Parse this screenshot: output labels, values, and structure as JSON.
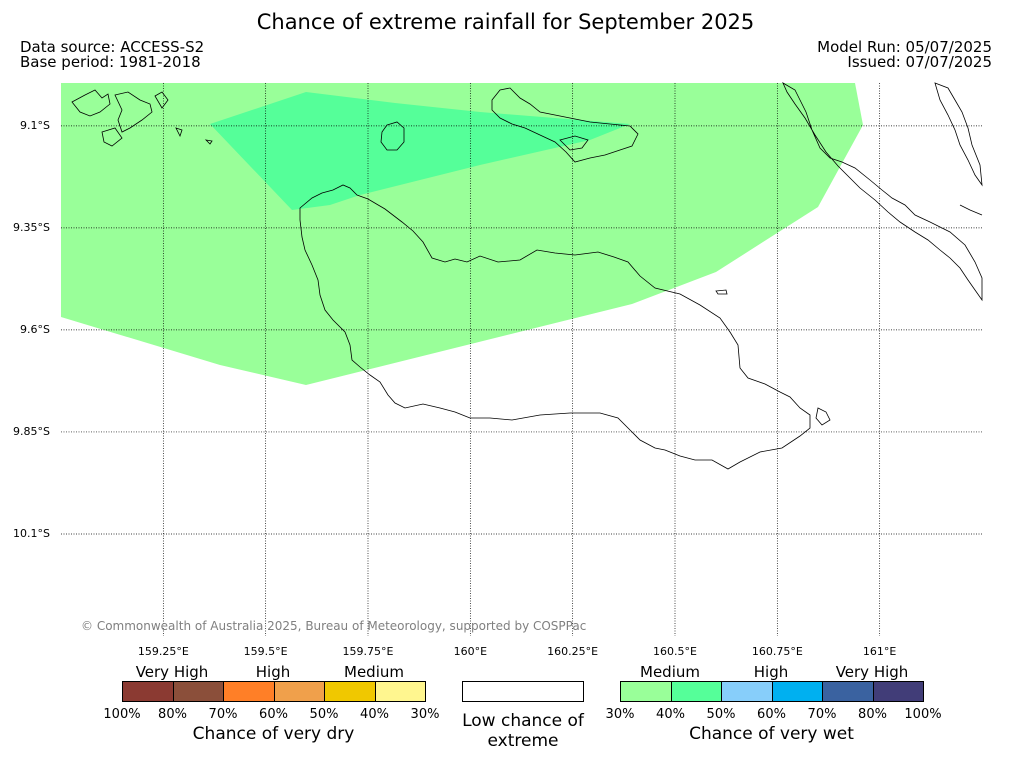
{
  "title": "Chance of extreme rainfall for September 2025",
  "source": {
    "data_source": "Data source: ACCESS-S2",
    "base_period": "Base period: 1981-2018",
    "model_run": "Model Run: 05/07/2025",
    "issued": "Issued: 07/07/2025"
  },
  "map": {
    "lat_labels": [
      "9.1°S",
      "9.35°S",
      "9.6°S",
      "9.85°S",
      "10.1°S"
    ],
    "lon_labels": [
      "159.25°E",
      "159.5°E",
      "159.75°E",
      "160°E",
      "160.25°E",
      "160.5°E",
      "160.75°E",
      "161°E"
    ],
    "lat_range": [
      -10.35,
      -8.995
    ],
    "lon_range": [
      159.0,
      161.25
    ],
    "copyright": "© Commonwealth of Australia 2025, Bureau of Meteorology, supported by COSPPac",
    "regions": [
      {
        "category": "30-40% very wet",
        "color": "#99ff99"
      },
      {
        "category": "40-50% very wet",
        "color": "#55ff99"
      }
    ]
  },
  "legend": {
    "dry": {
      "categories": [
        "Very High",
        "High",
        "Medium"
      ],
      "ticks": [
        "100%",
        "80%",
        "70%",
        "60%",
        "50%",
        "40%",
        "30%"
      ],
      "colors": [
        "#8b3a32",
        "#8b4f3a",
        "#ff7f27",
        "#f0a04b",
        "#f0c800",
        "#fff68f"
      ],
      "title": "Chance of very dry"
    },
    "low": {
      "text": "Low chance of extreme",
      "color": "#ffffff"
    },
    "wet": {
      "categories": [
        "Medium",
        "High",
        "Very High"
      ],
      "ticks": [
        "30%",
        "40%",
        "50%",
        "60%",
        "70%",
        "80%",
        "100%"
      ],
      "colors": [
        "#99ff99",
        "#55ff99",
        "#87cefa",
        "#00b0f0",
        "#3a62a0",
        "#413d78"
      ],
      "title": "Chance of very wet"
    }
  }
}
